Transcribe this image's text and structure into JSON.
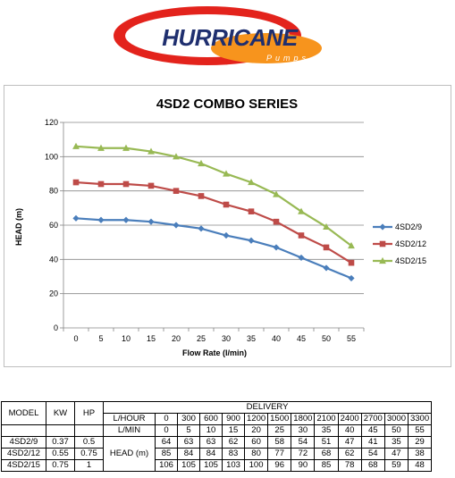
{
  "brand": {
    "name": "HURRICANE",
    "tagline": "Pumps",
    "colors": {
      "red": "#e3231c",
      "orange": "#f7941d",
      "navy": "#1f2f6f"
    }
  },
  "chart_data": {
    "type": "line",
    "title": "4SD2 COMBO SERIES",
    "xlabel": "Flow Rate (l/min)",
    "ylabel": "HEAD (m)",
    "x": [
      0,
      5,
      10,
      15,
      20,
      25,
      30,
      35,
      40,
      45,
      50,
      55
    ],
    "xlim": [
      0,
      55
    ],
    "ylim": [
      0,
      120
    ],
    "yticks": [
      0,
      20,
      40,
      60,
      80,
      100,
      120
    ],
    "grid": true,
    "legend_position": "right",
    "series": [
      {
        "name": "4SD2/9",
        "color": "#4a7ebb",
        "marker": "diamond",
        "values": [
          64,
          63,
          63,
          62,
          60,
          58,
          54,
          51,
          47,
          41,
          35,
          29
        ]
      },
      {
        "name": "4SD2/12",
        "color": "#be4b48",
        "marker": "square",
        "values": [
          85,
          84,
          84,
          83,
          80,
          77,
          72,
          68,
          62,
          54,
          47,
          38
        ]
      },
      {
        "name": "4SD2/15",
        "color": "#98b954",
        "marker": "triangle",
        "values": [
          106,
          105,
          105,
          103,
          100,
          96,
          90,
          85,
          78,
          68,
          59,
          48
        ]
      }
    ]
  },
  "table": {
    "headers": {
      "model": "MODEL",
      "kw": "KW",
      "hp": "HP",
      "delivery": "DELIVERY"
    },
    "l_hour_label": "L/HOUR",
    "l_min_label": "L/MIN",
    "head_label": "HEAD (m)",
    "l_hour": [
      "0",
      "300",
      "600",
      "900",
      "1200",
      "1500",
      "1800",
      "2100",
      "2400",
      "2700",
      "3000",
      "3300"
    ],
    "l_min": [
      "0",
      "5",
      "10",
      "15",
      "20",
      "25",
      "30",
      "35",
      "40",
      "45",
      "50",
      "55"
    ],
    "rows": [
      {
        "model": "4SD2/9",
        "kw": "0.37",
        "hp": "0.5",
        "values": [
          "64",
          "63",
          "63",
          "62",
          "60",
          "58",
          "54",
          "51",
          "47",
          "41",
          "35",
          "29"
        ]
      },
      {
        "model": "4SD2/12",
        "kw": "0.55",
        "hp": "0.75",
        "values": [
          "85",
          "84",
          "84",
          "83",
          "80",
          "77",
          "72",
          "68",
          "62",
          "54",
          "47",
          "38"
        ]
      },
      {
        "model": "4SD2/15",
        "kw": "0.75",
        "hp": "1",
        "values": [
          "106",
          "105",
          "105",
          "103",
          "100",
          "96",
          "90",
          "85",
          "78",
          "68",
          "59",
          "48"
        ]
      }
    ]
  }
}
